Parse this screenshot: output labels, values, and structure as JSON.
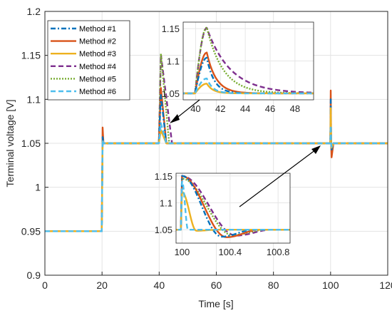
{
  "chart_data": {
    "type": "line",
    "xlabel": "Time [s]",
    "ylabel": "Terminal voltage [V]",
    "xlim": [
      0,
      120
    ],
    "ylim": [
      0.9,
      1.2
    ],
    "xticks": [
      "0",
      "20",
      "40",
      "60",
      "80",
      "100",
      "120"
    ],
    "yticks": [
      "0.9",
      "0.95",
      "1",
      "1.05",
      "1.1",
      "1.15",
      "1.2"
    ],
    "grid": true,
    "legend_position": "top-left",
    "series": [
      {
        "name": "Method #1",
        "color": "#0072BD",
        "dash": "dash-dot",
        "peak_40": 1.105,
        "spike_20": 1.057,
        "dip_100": 1.043,
        "spike_100": 1.1
      },
      {
        "name": "Method #2",
        "color": "#D95319",
        "dash": "solid",
        "peak_40": 1.113,
        "spike_20": 1.068,
        "dip_100": 1.034,
        "spike_100": 1.11
      },
      {
        "name": "Method #3",
        "color": "#EDB120",
        "dash": "solid",
        "peak_40": 1.065,
        "spike_20": 1.052,
        "dip_100": 1.045,
        "spike_100": 1.09
      },
      {
        "name": "Method #4",
        "color": "#7E2F8E",
        "dash": "dash",
        "peak_40": 1.151,
        "spike_20": 1.055,
        "dip_100": 1.046,
        "spike_100": 1.08
      },
      {
        "name": "Method #5",
        "color": "#77AC30",
        "dash": "dot",
        "peak_40": 1.152,
        "spike_20": 1.053,
        "dip_100": 1.047,
        "spike_100": 1.075
      },
      {
        "name": "Method #6",
        "color": "#4DBEEE",
        "dash": "dash",
        "peak_40": 1.073,
        "spike_20": 1.054,
        "dip_100": 1.046,
        "spike_100": 1.07
      }
    ],
    "step_points": [
      {
        "t": 0,
        "v": 0.95
      },
      {
        "t": 20,
        "v": 0.95
      },
      {
        "t": 20.5,
        "v": 1.05
      },
      {
        "t": 120,
        "v": 1.05
      }
    ],
    "insets": [
      {
        "name": "inset-40s",
        "xlim": [
          39,
          49.5
        ],
        "ylim": [
          1.04,
          1.16
        ],
        "xticks": [
          "40",
          "42",
          "44",
          "46",
          "48"
        ],
        "yticks": [
          "1.05",
          "1.1",
          "1.15"
        ]
      },
      {
        "name": "inset-100s",
        "xlim": [
          99.95,
          100.9
        ],
        "ylim": [
          1.025,
          1.155
        ],
        "xticks": [
          "100",
          "100.4",
          "100.8"
        ],
        "yticks": [
          "1.05",
          "1.1",
          "1.15"
        ]
      }
    ]
  }
}
